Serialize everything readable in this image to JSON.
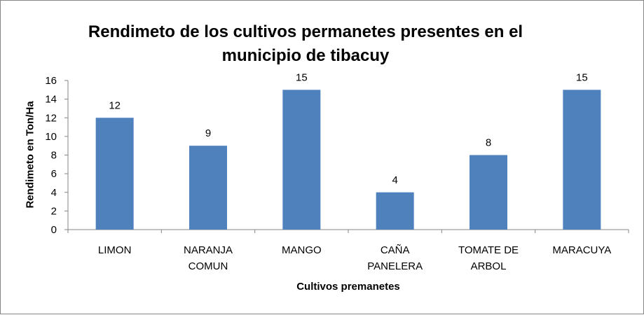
{
  "chart_data": {
    "type": "bar",
    "title_lines": [
      "Rendimeto de los cultivos permanetes presentes en el",
      "municipio de tibacuy"
    ],
    "xlabel": "Cultivos premanetes",
    "ylabel": "Rendimeto  en Ton/Ha",
    "categories": [
      [
        "LIMON"
      ],
      [
        "NARANJA",
        "COMUN"
      ],
      [
        "MANGO"
      ],
      [
        "CAÑA",
        "PANELERA"
      ],
      [
        "TOMATE DE",
        "ARBOL"
      ],
      [
        "MARACUYA"
      ]
    ],
    "values": [
      12,
      9,
      15,
      4,
      8,
      15
    ],
    "data_labels": [
      "12",
      "9",
      "15",
      "4",
      "8",
      "15"
    ],
    "ylim": [
      0,
      16
    ],
    "yticks": [
      0,
      2,
      4,
      6,
      8,
      10,
      12,
      14,
      16
    ],
    "bar_color": "#4F81BD",
    "grid": false,
    "legend": "none"
  }
}
